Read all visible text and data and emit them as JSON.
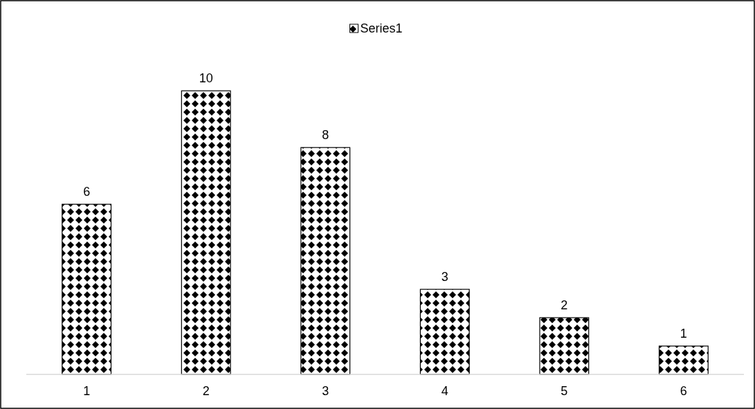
{
  "chart_data": {
    "type": "bar",
    "categories": [
      "1",
      "2",
      "3",
      "4",
      "5",
      "6"
    ],
    "series": [
      {
        "name": "Series1",
        "color": "#000000",
        "values": [
          6,
          10,
          8,
          3,
          2,
          1
        ]
      }
    ],
    "data_labels": true,
    "legend": "top"
  }
}
